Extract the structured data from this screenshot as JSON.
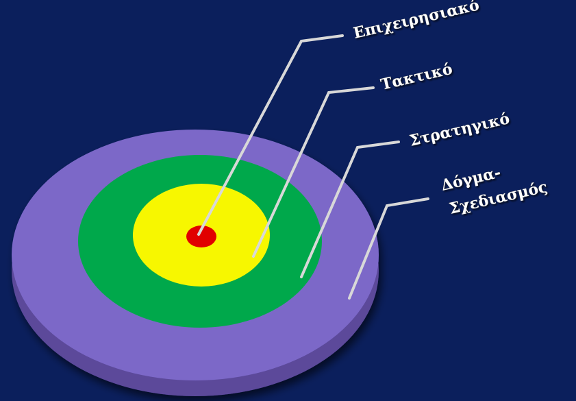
{
  "background_color": "#0b1f5c",
  "rings": [
    {
      "id": "outer",
      "color": "#7b68c8",
      "edge_color": "#5b4a9a"
    },
    {
      "id": "green",
      "color": "#00a84b"
    },
    {
      "id": "yellow",
      "color": "#f7f700"
    },
    {
      "id": "center",
      "color": "#e10000"
    }
  ],
  "labels": {
    "operational": "Επιχειρησιακό",
    "tactical": "Τακτικό",
    "strategic": "Στρατηγικό",
    "doctrine_line1": "Δόγμα-",
    "doctrine_line2": "Σχεδιασμός"
  },
  "leader_color": "#d8d8d8"
}
